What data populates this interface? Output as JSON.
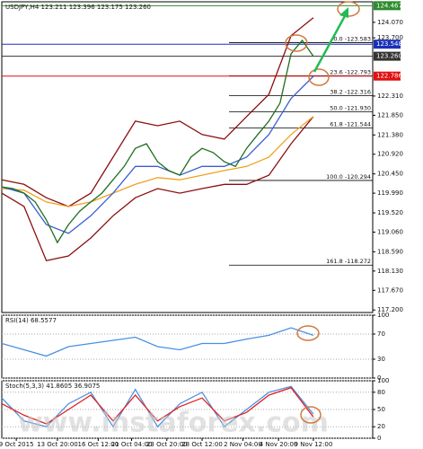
{
  "chart_data": [
    {
      "type": "line",
      "title": "USDJPY,H4  123.211 123.396 123.175 123.260",
      "xlim": [
        0,
        100
      ],
      "ylim": [
        117.14,
        124.56
      ],
      "yticks": [
        {
          "value": 117.2,
          "label": "117.200"
        },
        {
          "value": 117.67,
          "label": "117.670"
        },
        {
          "value": 118.13,
          "label": "118.130"
        },
        {
          "value": 118.59,
          "label": "118.590"
        },
        {
          "value": 119.06,
          "label": "119.060"
        },
        {
          "value": 119.52,
          "label": "119.520"
        },
        {
          "value": 119.99,
          "label": "119.990"
        },
        {
          "value": 120.45,
          "label": "120.450"
        },
        {
          "value": 120.92,
          "label": "120.920"
        },
        {
          "value": 121.38,
          "label": "121.380"
        },
        {
          "value": 121.85,
          "label": "121.850"
        },
        {
          "value": 122.31,
          "label": "122.310"
        },
        {
          "value": 123.7,
          "label": "123.700"
        },
        {
          "value": 124.07,
          "label": "124.070"
        }
      ],
      "price_lines": [
        {
          "value": 124.467,
          "label": "124.467",
          "color": "#2e8b2e"
        },
        {
          "value": 123.548,
          "label": "123.548",
          "color": "#1a2fb8"
        },
        {
          "value": 123.26,
          "label": "123.260",
          "color": "#333333"
        },
        {
          "value": 122.786,
          "label": "122.786",
          "color": "#e01010"
        }
      ],
      "fib_levels": [
        {
          "value": 123.583,
          "label": "0.0 -123.583"
        },
        {
          "value": 122.793,
          "label": "23.6 -122.793"
        },
        {
          "value": 122.316,
          "label": "38.2 -122.316"
        },
        {
          "value": 121.93,
          "label": "50.0 -121.930"
        },
        {
          "value": 121.544,
          "label": "61.8 -121.544"
        },
        {
          "value": 120.294,
          "label": "100.0 -120.294"
        },
        {
          "value": 118.272,
          "label": "161.8 -118.272"
        }
      ],
      "series": [
        {
          "color": "#8b1010",
          "x": [
            0,
            6,
            12,
            18,
            24,
            30,
            36,
            42,
            48,
            54,
            60,
            66,
            72,
            78,
            84
          ],
          "values": [
            120.31,
            120.2,
            119.88,
            119.67,
            119.99,
            120.85,
            121.71,
            121.6,
            121.71,
            121.39,
            121.28,
            121.82,
            122.35,
            123.75,
            124.18
          ]
        },
        {
          "color": "#8b1010",
          "x": [
            0,
            6,
            12,
            18,
            24,
            30,
            36,
            42,
            48,
            54,
            60,
            66,
            72,
            78,
            84
          ],
          "values": [
            119.99,
            119.67,
            118.38,
            118.49,
            118.92,
            119.45,
            119.88,
            120.1,
            119.99,
            120.1,
            120.2,
            120.2,
            120.42,
            121.17,
            121.82
          ]
        },
        {
          "color": "#f0a020",
          "x": [
            0,
            6,
            12,
            18,
            24,
            30,
            36,
            42,
            48,
            54,
            60,
            66,
            72,
            78,
            84
          ],
          "values": [
            120.1,
            120.06,
            119.78,
            119.67,
            119.78,
            119.99,
            120.2,
            120.36,
            120.31,
            120.42,
            120.53,
            120.63,
            120.85,
            121.39,
            121.82
          ]
        },
        {
          "color": "#3a5fd0",
          "x": [
            0,
            6,
            12,
            18,
            24,
            30,
            36,
            42,
            48,
            54,
            60,
            66,
            72,
            78,
            84
          ],
          "values": [
            120.14,
            119.99,
            119.24,
            119.03,
            119.45,
            119.99,
            120.63,
            120.63,
            120.42,
            120.63,
            120.63,
            120.85,
            121.39,
            122.25,
            122.78
          ]
        },
        {
          "color": "#1e6e1e",
          "x": [
            0,
            3,
            6,
            9,
            12,
            15,
            18,
            21,
            24,
            27,
            30,
            33,
            36,
            39,
            42,
            45,
            48,
            51,
            54,
            57,
            60,
            63,
            66,
            69,
            72,
            75,
            78,
            81,
            84
          ],
          "values": [
            120.14,
            120.1,
            119.99,
            119.78,
            119.35,
            118.81,
            119.24,
            119.56,
            119.78,
            119.99,
            120.31,
            120.63,
            121.06,
            121.17,
            120.74,
            120.53,
            120.42,
            120.85,
            121.06,
            120.96,
            120.74,
            120.63,
            121.06,
            121.39,
            121.71,
            122.14,
            123.32,
            123.64,
            123.26
          ]
        }
      ]
    },
    {
      "type": "line",
      "title": "RSI(14) 68.5577",
      "xlim": [
        0,
        100
      ],
      "ylim": [
        0,
        100
      ],
      "yticks": [
        0,
        30,
        70,
        100
      ],
      "series": [
        {
          "color": "#4a90e2",
          "x": [
            0,
            6,
            12,
            18,
            24,
            30,
            36,
            42,
            48,
            54,
            60,
            66,
            72,
            78,
            84
          ],
          "values": [
            55,
            45,
            35,
            50,
            55,
            60,
            65,
            50,
            45,
            55,
            55,
            62,
            68,
            80,
            68
          ]
        }
      ]
    },
    {
      "type": "line",
      "title": "Stoch(5,3,3) 41.8605 36.9075",
      "xlim": [
        0,
        100
      ],
      "ylim": [
        0,
        100
      ],
      "yticks": [
        0,
        20,
        50,
        80,
        100
      ],
      "xticks": [
        {
          "value": 3.9,
          "label": "9 Oct 2015"
        },
        {
          "value": 15,
          "label": "13 Oct 20:00"
        },
        {
          "value": 26,
          "label": "16 Oct 12:00"
        },
        {
          "value": 35,
          "label": "21 Oct 04:00"
        },
        {
          "value": 44.5,
          "label": "23 Oct 20:00"
        },
        {
          "value": 54,
          "label": "28 Oct 12:00"
        },
        {
          "value": 65,
          "label": "2 Nov 04:00"
        },
        {
          "value": 74.6,
          "label": "4 Nov 20:00"
        },
        {
          "value": 84,
          "label": "9 Nov 12:00"
        }
      ],
      "series": [
        {
          "color": "#4a90e2",
          "x": [
            0,
            6,
            12,
            18,
            24,
            30,
            36,
            42,
            48,
            54,
            60,
            66,
            72,
            78,
            84
          ],
          "values": [
            70,
            30,
            20,
            60,
            80,
            20,
            85,
            20,
            60,
            80,
            20,
            50,
            80,
            90,
            42
          ]
        },
        {
          "color": "#e02020",
          "x": [
            0,
            6,
            12,
            18,
            24,
            30,
            36,
            42,
            48,
            54,
            60,
            66,
            72,
            78,
            84
          ],
          "values": [
            60,
            40,
            25,
            50,
            75,
            30,
            75,
            30,
            55,
            70,
            30,
            45,
            75,
            88,
            37
          ]
        }
      ]
    }
  ],
  "watermark": "www.instaforex.com"
}
